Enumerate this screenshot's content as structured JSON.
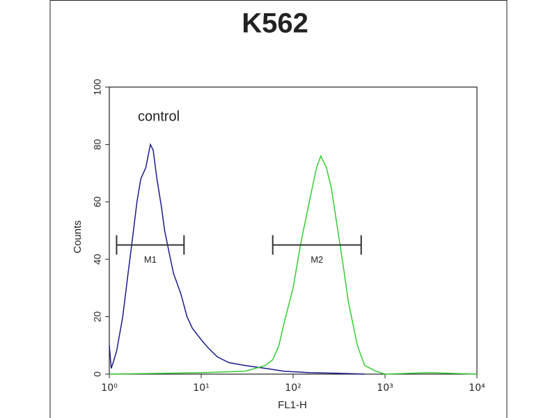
{
  "chart_data": {
    "type": "line",
    "title": "K562",
    "xlabel": "FL1-H",
    "ylabel": "Counts",
    "xscale": "log",
    "xlim": [
      1,
      10000
    ],
    "xticks": [
      {
        "value": 1,
        "label": "10⁰"
      },
      {
        "value": 10,
        "label": "10¹"
      },
      {
        "value": 100,
        "label": "10²"
      },
      {
        "value": 1000,
        "label": "10³"
      },
      {
        "value": 10000,
        "label": "10⁴"
      }
    ],
    "ylim": [
      0,
      100
    ],
    "yticks": [
      0,
      20,
      40,
      60,
      80,
      100
    ],
    "series": [
      {
        "name": "control",
        "color": "#1a1a8c",
        "x": [
          1,
          1.05,
          1.1,
          1.2,
          1.4,
          1.6,
          1.8,
          2,
          2.2,
          2.5,
          2.8,
          3,
          3.3,
          3.7,
          4,
          4.5,
          5,
          6,
          7,
          8,
          10,
          12,
          15,
          20,
          30,
          50,
          80,
          150,
          300,
          600
        ],
        "values": [
          10,
          2,
          4,
          8,
          20,
          35,
          48,
          60,
          68,
          72,
          80,
          78,
          68,
          58,
          50,
          42,
          35,
          28,
          20,
          16,
          12,
          9,
          6,
          4,
          3,
          2,
          1,
          0.5,
          0.3,
          0
        ]
      },
      {
        "color": "#33cc33",
        "x": [
          1,
          10,
          30,
          50,
          60,
          70,
          80,
          100,
          120,
          150,
          180,
          200,
          230,
          260,
          300,
          350,
          400,
          500,
          600,
          800,
          1000,
          3000,
          10000
        ],
        "values": [
          0,
          0.5,
          1,
          3,
          5,
          10,
          18,
          30,
          45,
          60,
          72,
          76,
          72,
          65,
          52,
          38,
          25,
          10,
          3,
          1,
          0,
          0.5,
          0
        ]
      }
    ],
    "markers": [
      {
        "label": "M1",
        "range": [
          1.2,
          6.5
        ],
        "y": 45,
        "color": "#333333"
      },
      {
        "label": "M2",
        "range": [
          60,
          550
        ],
        "y": 45,
        "color": "#333333"
      }
    ]
  }
}
